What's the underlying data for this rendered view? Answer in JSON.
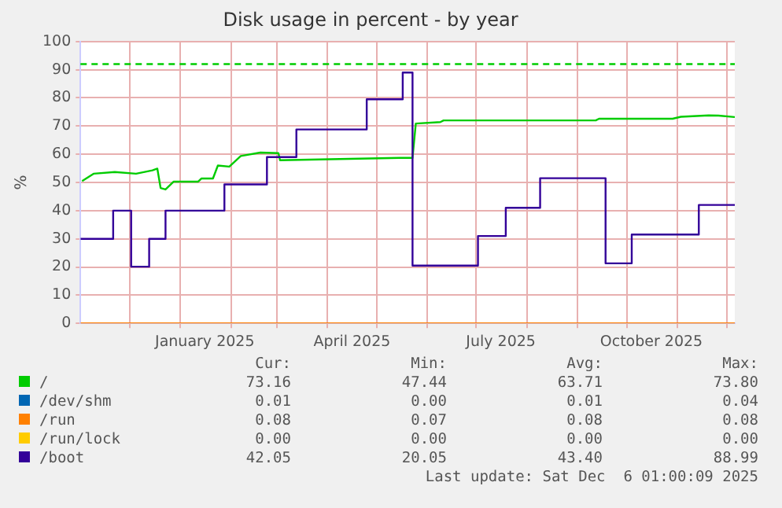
{
  "chart_data": {
    "type": "line",
    "title": "Disk usage in percent - by year",
    "ylabel": "%",
    "xlim": [
      "2024-11-01",
      "2025-12-06"
    ],
    "xticks": [
      {
        "value": "2024-12-01",
        "label": null
      },
      {
        "value": "2025-01-01",
        "label": null
      },
      {
        "value": "2025-01-16",
        "label": "January 2025"
      },
      {
        "value": "2025-02-01",
        "label": null
      },
      {
        "value": "2025-03-01",
        "label": null
      },
      {
        "value": "2025-04-01",
        "label": null
      },
      {
        "value": "2025-04-16",
        "label": "April 2025"
      },
      {
        "value": "2025-05-01",
        "label": null
      },
      {
        "value": "2025-06-01",
        "label": null
      },
      {
        "value": "2025-07-01",
        "label": null
      },
      {
        "value": "2025-07-16",
        "label": "July 2025"
      },
      {
        "value": "2025-08-01",
        "label": null
      },
      {
        "value": "2025-09-01",
        "label": null
      },
      {
        "value": "2025-10-01",
        "label": null
      },
      {
        "value": "2025-10-16",
        "label": "October 2025"
      },
      {
        "value": "2025-11-01",
        "label": null
      },
      {
        "value": "2025-12-01",
        "label": null
      }
    ],
    "ylim": [
      0,
      100
    ],
    "yticks": [
      0,
      10,
      20,
      30,
      40,
      50,
      60,
      70,
      80,
      90,
      100
    ],
    "grid": true,
    "legend": "bottom",
    "marker": "none",
    "line_style": "solid",
    "ref_lines": [
      {
        "axis": "y",
        "value": 92,
        "label": null,
        "color": "#00cc00",
        "line_style": "dashed"
      }
    ],
    "series": [
      {
        "name": "/",
        "color": "#00cc00",
        "x": [
          "2024-11-02",
          "2024-11-09",
          "2024-11-22",
          "2024-12-05",
          "2024-12-15",
          "2024-12-18",
          "2024-12-20",
          "2024-12-23",
          "2024-12-28",
          "2025-01-12",
          "2025-01-14",
          "2025-01-21",
          "2025-01-24",
          "2025-01-31",
          "2025-02-07",
          "2025-02-19",
          "2025-03-02",
          "2025-03-03",
          "2025-05-15",
          "2025-05-23",
          "2025-05-25",
          "2025-06-09",
          "2025-06-11",
          "2025-09-12",
          "2025-09-14",
          "2025-10-29",
          "2025-11-03",
          "2025-11-20",
          "2025-11-26",
          "2025-12-06"
        ],
        "values": [
          50.5,
          53.1,
          53.7,
          53.1,
          54.3,
          54.9,
          48,
          47.5,
          50.3,
          50.3,
          51.4,
          51.4,
          56,
          55.6,
          59.4,
          60.6,
          60.4,
          57.9,
          58.7,
          58.7,
          70.9,
          71.4,
          72,
          72,
          72.6,
          72.6,
          73.3,
          73.8,
          73.7,
          73.2
        ]
      },
      {
        "name": "/dev/shm",
        "color": "#0066b3"
      },
      {
        "name": "/run",
        "color": "#ff8000",
        "x": [
          "2024-11-01",
          "2025-12-06"
        ],
        "values": [
          0,
          0
        ]
      },
      {
        "name": "/run/lock",
        "color": "#ffcc00"
      },
      {
        "name": "/boot",
        "type": "step",
        "color": "#330099",
        "x": [
          "2024-11-01",
          "2024-11-21",
          "2024-12-02",
          "2024-12-13",
          "2024-12-23",
          "2025-01-28",
          "2025-02-23",
          "2025-03-13",
          "2025-04-25",
          "2025-05-17",
          "2025-05-23",
          "2025-07-02",
          "2025-07-19",
          "2025-08-09",
          "2025-09-18",
          "2025-10-04",
          "2025-11-14",
          "2025-12-06"
        ],
        "values": [
          30,
          40,
          20.1,
          30,
          40,
          49.3,
          59,
          68.8,
          79.5,
          89,
          20.5,
          31,
          41,
          51.5,
          21.3,
          31.5,
          42,
          42
        ]
      }
    ],
    "annotations": [
      "Cur:",
      "Min:",
      "Avg:",
      "Max:",
      "73.16",
      "47.44",
      "63.71",
      "73.80",
      "0.01",
      "0.00",
      "0.01",
      "0.04",
      "0.08",
      "0.07",
      "0.08",
      "0.08",
      "0.00",
      "0.00",
      "0.00",
      "0.00",
      "42.05",
      "20.05",
      "43.40",
      "88.99",
      "Last update: Sat Dec  6 01:00:09 2025"
    ]
  }
}
